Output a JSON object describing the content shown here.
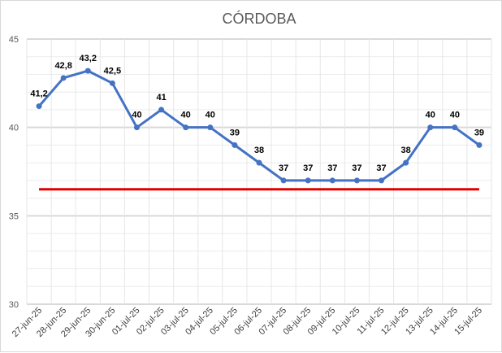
{
  "chart_data": {
    "type": "line",
    "title": "CÓRDOBA",
    "xlabel": "",
    "ylabel": "",
    "ylim": [
      30,
      45
    ],
    "yticks": [
      "30",
      "35",
      "40",
      "45"
    ],
    "grid": "major and minor horizontal and vertical gridlines",
    "legend": "none",
    "categories": [
      "27-jun-25",
      "28-jun-25",
      "29-jun-25",
      "30-jun-25",
      "01-jul-25",
      "02-jul-25",
      "03-jul-25",
      "04-jul-25",
      "05-jul-25",
      "06-jul-25",
      "07-jul-25",
      "08-jul-25",
      "09-jul-25",
      "10-jul-25",
      "11-jul-25",
      "12-jul-25",
      "13-jul-25",
      "14-jul-25",
      "15-jul-25"
    ],
    "series": [
      {
        "values": [
          41.2,
          42.8,
          43.2,
          42.5,
          40,
          41,
          40,
          40,
          39,
          38,
          37,
          37,
          37,
          37,
          37,
          38,
          40,
          40,
          39
        ],
        "data_labels": [
          "41,2",
          "42,8",
          "43,2",
          "42,5",
          "40",
          "41",
          "40",
          "40",
          "39",
          "38",
          "37",
          "37",
          "37",
          "37",
          "37",
          "38",
          "40",
          "40",
          "39"
        ],
        "color": "#4472c4",
        "marker": "circle"
      }
    ],
    "reference_line": {
      "value": 36.5,
      "color": "#e00000"
    }
  }
}
